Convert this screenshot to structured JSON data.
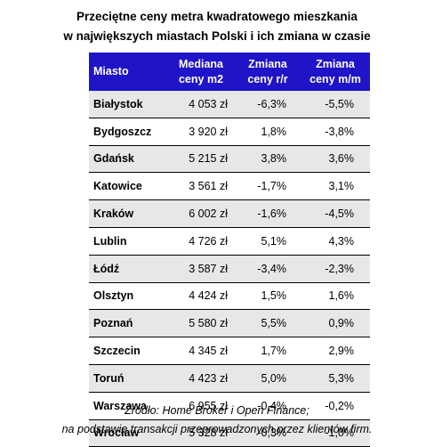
{
  "chart_data": {
    "type": "table",
    "title": [
      "Przeciętne ceny metra kwadratowego mieszkania",
      "w największych miastach Polski i ich zmiana w czasie"
    ],
    "columns": [
      [
        "Miasto"
      ],
      [
        "Mediana",
        "ceny m2"
      ],
      [
        "Zmiana",
        "ceny r/r"
      ],
      [
        "Zmiana",
        "ceny m/m"
      ]
    ],
    "rows": [
      {
        "city": "Białystok",
        "price": "4 053 zł",
        "yoy": "-6,3%",
        "mom": "-5,5%"
      },
      {
        "city": "Bydgoszcz",
        "price": "3 920 zł",
        "yoy": "1,8%",
        "mom": "-3,8%"
      },
      {
        "city": "Gdańsk",
        "price": "5 215 zł",
        "yoy": "3,8%",
        "mom": "3,6%"
      },
      {
        "city": "Katowice",
        "price": "3 561 zł",
        "yoy": "-1,7%",
        "mom": "3,1%"
      },
      {
        "city": "Kraków",
        "price": "6 002 zł",
        "yoy": "-1,6%",
        "mom": "-4,5%"
      },
      {
        "city": "Lublin",
        "price": "4 726 zł",
        "yoy": "5,1%",
        "mom": "4,3%"
      },
      {
        "city": "Łódź",
        "price": "3 587 zł",
        "yoy": "-3,4%",
        "mom": "-2,3%"
      },
      {
        "city": "Olsztyn",
        "price": "4 424 zł",
        "yoy": "1,5%",
        "mom": "1,6%"
      },
      {
        "city": "Poznań",
        "price": "5 580 zł",
        "yoy": "5,5%",
        "mom": "0,9%"
      },
      {
        "city": "Szczecin",
        "price": "4 345 zł",
        "yoy": "1,7%",
        "mom": "2,9%"
      },
      {
        "city": "Toruń",
        "price": "4 423 zł",
        "yoy": "5,0%",
        "mom": "5,3%"
      },
      {
        "city": "Warszawa",
        "price": "6 955 zł",
        "yoy": "-0,4%",
        "mom": "-0,2%"
      },
      {
        "city": "Wrocław",
        "price": "5 328 zł",
        "yoy": "-0,3%",
        "mom": "-1,0%"
      }
    ],
    "source": [
      "Źródło: Home Broker i Open Finance;",
      "na podstawie transakcji przeprowadzonych przez klientów firm."
    ],
    "colors": {
      "header_background": "#1f14c8",
      "header_text": "#ffffff",
      "stripe_background": "#e7e7e7",
      "row_border": "#000000"
    }
  }
}
